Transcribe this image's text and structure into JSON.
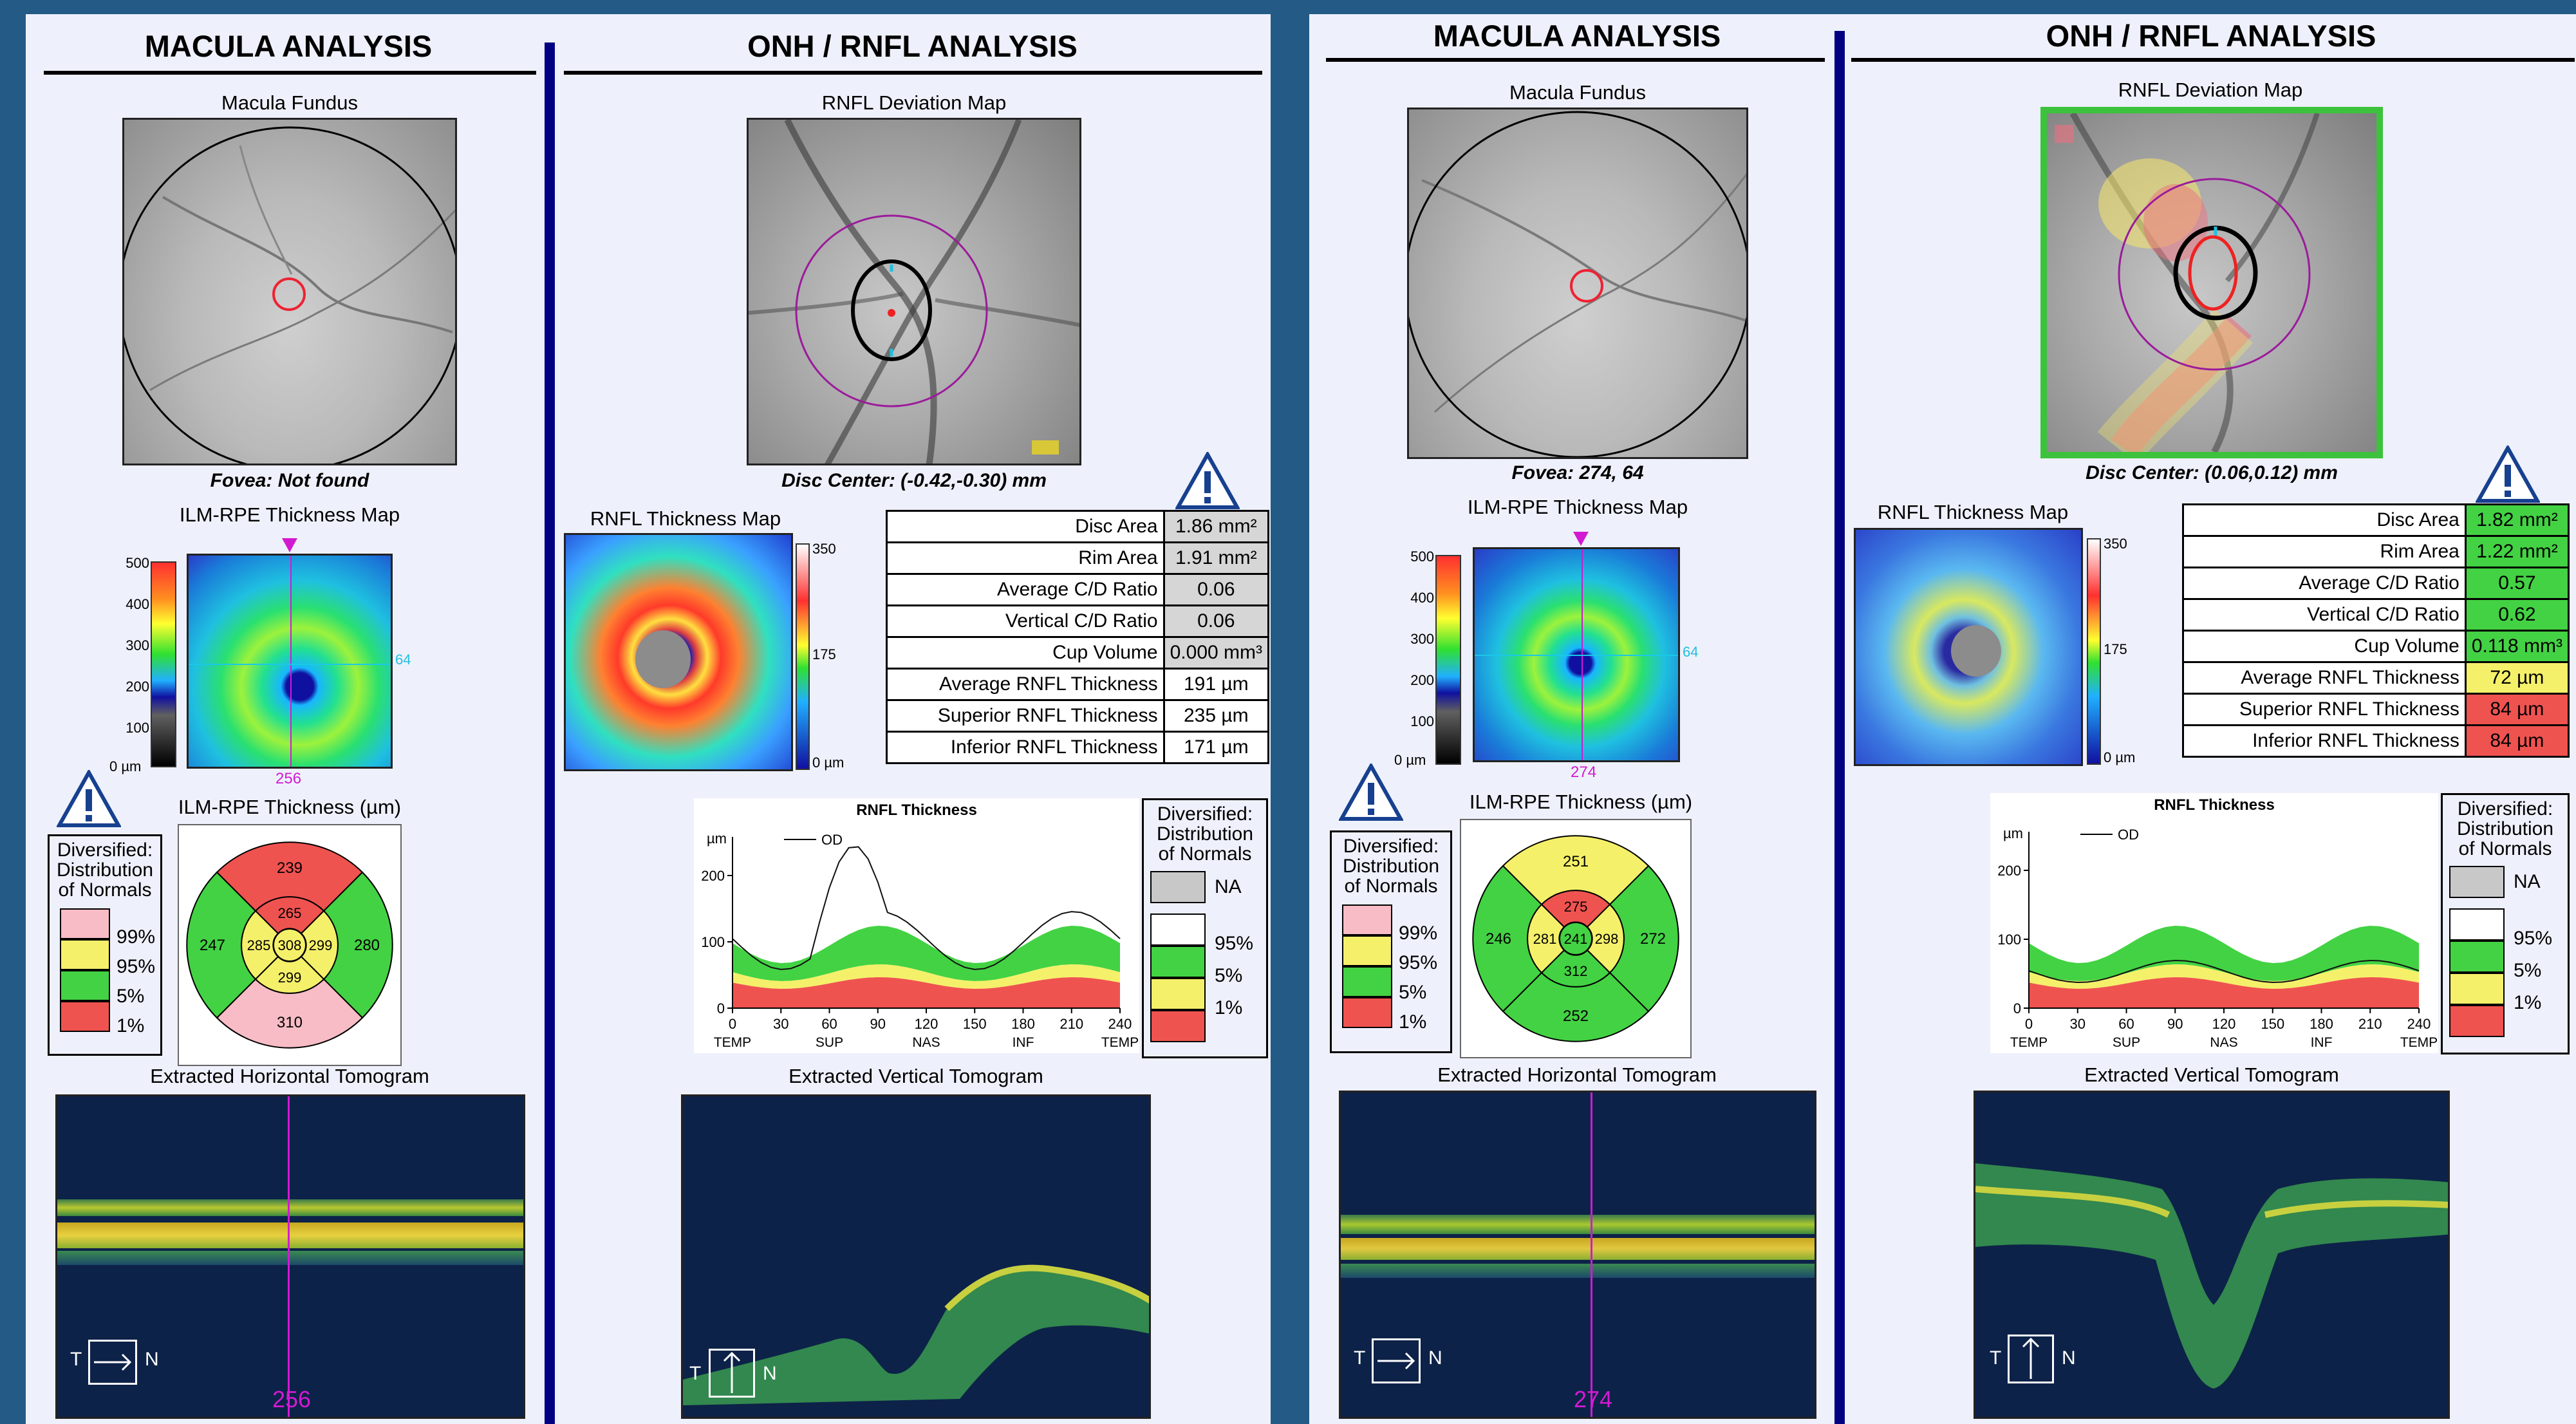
{
  "left": {
    "macula": {
      "header": "MACULA ANALYSIS",
      "fundus_title": "Macula Fundus",
      "fovea_caption": "Fovea: Not found",
      "thickness_map_title": "ILM-RPE Thickness Map",
      "colorbar_ticks": [
        "500",
        "400",
        "300",
        "200",
        "100",
        "0 µm"
      ],
      "map_marker_right": "64",
      "map_marker_bottom": "256",
      "sector_title": "ILM-RPE Thickness (µm)",
      "sectors": {
        "outer_sup": "239",
        "outer_temp": "247",
        "outer_nas": "280",
        "outer_inf": "310",
        "inner_sup": "265",
        "inner_temp": "285",
        "inner_nas": "299",
        "inner_inf": "299",
        "center": "308"
      },
      "sector_colors": {
        "outer_sup": "#ef5350",
        "outer_temp": "#43d243",
        "outer_nas": "#43d243",
        "outer_inf": "#f7bcc5",
        "inner_sup": "#ef5350",
        "inner_temp": "#f5f06a",
        "inner_nas": "#f5f06a",
        "inner_inf": "#f5f06a",
        "center": "#f5f06a"
      },
      "legend": {
        "title": [
          "Diversified:",
          "Distribution",
          "of Normals"
        ],
        "items": [
          "99%",
          "95%",
          "5%",
          "1%"
        ]
      },
      "tomo_title": "Extracted Horizontal Tomogram",
      "tomo_position": "256",
      "orient_left": "T",
      "orient_right": "N"
    },
    "onh": {
      "header": "ONH / RNFL ANALYSIS",
      "dev_title": "RNFL Deviation Map",
      "disc_center": "Disc Center: (-0.42,-0.30) mm",
      "thickness_title": "RNFL Thickness Map",
      "colorbar_ticks": [
        "350",
        "175",
        "0 µm"
      ],
      "params": [
        {
          "label": "Disc Area",
          "value": "1.86 mm²",
          "color": "#d6d6d6"
        },
        {
          "label": "Rim Area",
          "value": "1.91 mm²",
          "color": "#d6d6d6"
        },
        {
          "label": "Average C/D Ratio",
          "value": "0.06",
          "color": "#d6d6d6"
        },
        {
          "label": "Vertical C/D Ratio",
          "value": "0.06",
          "color": "#d6d6d6"
        },
        {
          "label": "Cup Volume",
          "value": "0.000 mm³",
          "color": "#d6d6d6"
        },
        {
          "label": "Average RNFL Thickness",
          "value": "191 µm",
          "color": "#ffffff"
        },
        {
          "label": "Superior RNFL Thickness",
          "value": "235 µm",
          "color": "#ffffff"
        },
        {
          "label": "Inferior RNFL Thickness",
          "value": "171 µm",
          "color": "#ffffff"
        }
      ],
      "graph": {
        "title": "RNFL Thickness",
        "unit": "µm",
        "series_label": "OD",
        "yticks": [
          "200",
          "100",
          "0"
        ],
        "xticks": [
          "0",
          "30",
          "60",
          "90",
          "120",
          "150",
          "180",
          "210",
          "240"
        ],
        "xlabels": [
          "TEMP",
          "SUP",
          "NAS",
          "INF",
          "TEMP"
        ]
      },
      "legend": {
        "title": [
          "Diversified:",
          "Distribution",
          "of Normals"
        ],
        "items": [
          "NA",
          "95%",
          "5%",
          "1%"
        ]
      },
      "tomo_title": "Extracted Vertical Tomogram",
      "orient_left": "T",
      "orient_right": "N"
    }
  },
  "right": {
    "macula": {
      "header": "MACULA ANALYSIS",
      "fundus_title": "Macula Fundus",
      "fovea_caption": "Fovea: 274, 64",
      "thickness_map_title": "ILM-RPE Thickness Map",
      "colorbar_ticks": [
        "500",
        "400",
        "300",
        "200",
        "100",
        "0 µm"
      ],
      "map_marker_right": "64",
      "map_marker_bottom": "274",
      "sector_title": "ILM-RPE Thickness (µm)",
      "sectors": {
        "outer_sup": "251",
        "outer_temp": "246",
        "outer_nas": "272",
        "outer_inf": "252",
        "inner_sup": "275",
        "inner_temp": "281",
        "inner_nas": "298",
        "inner_inf": "312",
        "center": "241"
      },
      "sector_colors": {
        "outer_sup": "#f5f06a",
        "outer_temp": "#43d243",
        "outer_nas": "#43d243",
        "outer_inf": "#43d243",
        "inner_sup": "#ef5350",
        "inner_temp": "#f5f06a",
        "inner_nas": "#f5f06a",
        "inner_inf": "#43d243",
        "center": "#43d243"
      },
      "legend": {
        "title": [
          "Diversified:",
          "Distribution",
          "of Normals"
        ],
        "items": [
          "99%",
          "95%",
          "5%",
          "1%"
        ]
      },
      "tomo_title": "Extracted Horizontal Tomogram",
      "tomo_position": "274",
      "orient_left": "T",
      "orient_right": "N"
    },
    "onh": {
      "header": "ONH / RNFL ANALYSIS",
      "dev_title": "RNFL Deviation Map",
      "disc_center": "Disc Center: (0.06,0.12) mm",
      "thickness_title": "RNFL Thickness Map",
      "colorbar_ticks": [
        "350",
        "175",
        "0 µm"
      ],
      "params": [
        {
          "label": "Disc Area",
          "value": "1.82 mm²",
          "color": "#43d243"
        },
        {
          "label": "Rim Area",
          "value": "1.22 mm²",
          "color": "#43d243"
        },
        {
          "label": "Average C/D Ratio",
          "value": "0.57",
          "color": "#43d243"
        },
        {
          "label": "Vertical C/D Ratio",
          "value": "0.62",
          "color": "#43d243"
        },
        {
          "label": "Cup Volume",
          "value": "0.118 mm³",
          "color": "#43d243"
        },
        {
          "label": "Average RNFL Thickness",
          "value": "72 µm",
          "color": "#f5f06a"
        },
        {
          "label": "Superior RNFL Thickness",
          "value": "84 µm",
          "color": "#ef5350"
        },
        {
          "label": "Inferior RNFL Thickness",
          "value": "84 µm",
          "color": "#ef5350"
        }
      ],
      "graph": {
        "title": "RNFL Thickness",
        "unit": "µm",
        "series_label": "OD",
        "yticks": [
          "200",
          "100",
          "0"
        ],
        "xticks": [
          "0",
          "30",
          "60",
          "90",
          "120",
          "150",
          "180",
          "210",
          "240"
        ],
        "xlabels": [
          "TEMP",
          "SUP",
          "NAS",
          "INF",
          "TEMP"
        ]
      },
      "legend": {
        "title": [
          "Diversified:",
          "Distribution",
          "of Normals"
        ],
        "items": [
          "NA",
          "95%",
          "5%",
          "1%"
        ]
      },
      "tomo_title": "Extracted Vertical Tomogram",
      "orient_left": "T",
      "orient_right": "N"
    }
  }
}
